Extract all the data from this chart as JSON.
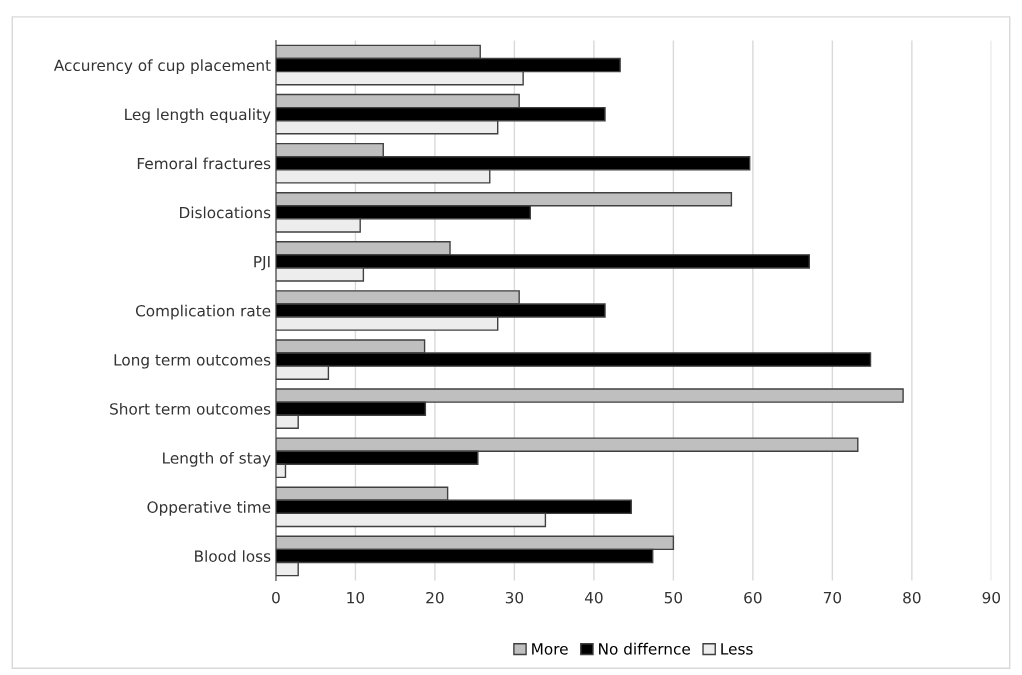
{
  "chart_data": {
    "type": "bar",
    "orientation": "horizontal",
    "categories": [
      "Accurency of cup placement",
      "Leg length equality",
      "Femoral fractures",
      "Dislocations",
      "PJI",
      "Complication rate",
      "Long term outcomes",
      "Short term outcomes",
      "Length of stay",
      "Opperative time",
      "Blood loss"
    ],
    "series": [
      {
        "name": "More",
        "color": "#bfbfbf",
        "values": [
          25.7,
          30.6,
          13.5,
          57.3,
          21.9,
          30.6,
          18.7,
          78.9,
          73.2,
          21.6,
          50.0
        ]
      },
      {
        "name": "No differnce",
        "color": "#000000",
        "values": [
          43.3,
          41.4,
          59.6,
          32.0,
          67.1,
          41.4,
          74.8,
          18.8,
          25.4,
          44.7,
          47.4
        ]
      },
      {
        "name": "Less",
        "color": "#ededed",
        "values": [
          31.1,
          27.9,
          26.9,
          10.6,
          11.0,
          27.9,
          6.6,
          2.8,
          1.2,
          33.9,
          2.8
        ]
      }
    ],
    "xlim": [
      0,
      90
    ],
    "xticks": [
      0,
      10,
      20,
      30,
      40,
      50,
      60,
      70,
      80,
      90
    ],
    "grid": "x",
    "legend": "bottom"
  }
}
